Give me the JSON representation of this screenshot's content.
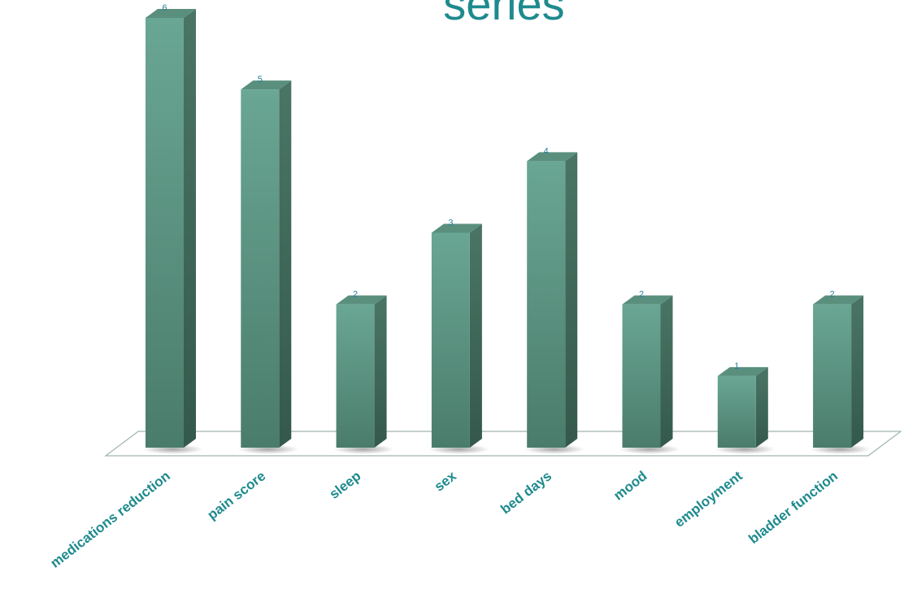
{
  "chart_data": {
    "type": "bar",
    "title": "series",
    "categories": [
      "medications reduction",
      "pain score",
      "sleep",
      "sex",
      "bed days",
      "mood",
      "employment",
      "bladder function"
    ],
    "values": [
      6,
      5,
      2,
      3,
      4,
      2,
      1,
      2
    ],
    "ylim": [
      0,
      6
    ],
    "grid": false,
    "legend": "none",
    "style": "3d-column",
    "colors": {
      "bar_front_top": "#6aa694",
      "bar_front_bottom": "#4a7c6b",
      "bar_side": "#3f6a5b",
      "bar_top": "#5a8f7e",
      "label": "#1e8a8e",
      "value_label": "#2a7f9a"
    }
  }
}
